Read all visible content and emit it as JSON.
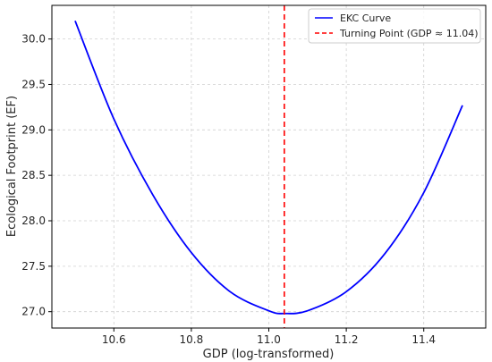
{
  "chart_data": {
    "type": "line",
    "xlabel": "GDP (log-transformed)",
    "ylabel": "Ecological Footprint (EF)",
    "xlim": [
      10.44,
      11.56
    ],
    "ylim": [
      26.82,
      30.37
    ],
    "x_ticks": [
      10.6,
      10.8,
      11.0,
      11.2,
      11.4
    ],
    "x_tick_labels": [
      "10.6",
      "10.8",
      "11.0",
      "11.2",
      "11.4"
    ],
    "y_ticks": [
      27.0,
      27.5,
      28.0,
      28.5,
      29.0,
      29.5,
      30.0
    ],
    "y_tick_labels": [
      "27.0",
      "27.5",
      "28.0",
      "28.5",
      "29.0",
      "29.5",
      "30.0"
    ],
    "grid": true,
    "legend_position": "top-right",
    "series": [
      {
        "name": "EKC Curve",
        "color": "#0000ff",
        "style": "solid",
        "x": [
          10.5,
          10.6,
          10.7,
          10.8,
          10.9,
          11.0,
          11.04,
          11.1,
          11.2,
          11.3,
          11.4,
          11.5
        ],
        "y": [
          30.2,
          29.12,
          28.29,
          27.65,
          27.22,
          27.01,
          26.98,
          27.01,
          27.22,
          27.64,
          28.31,
          29.27
        ]
      }
    ],
    "reference_lines": [
      {
        "name": "Turning Point (GDP ≈ 11.04)",
        "orientation": "vertical",
        "x": 11.04,
        "color": "#ff0000",
        "style": "dashed"
      }
    ]
  }
}
